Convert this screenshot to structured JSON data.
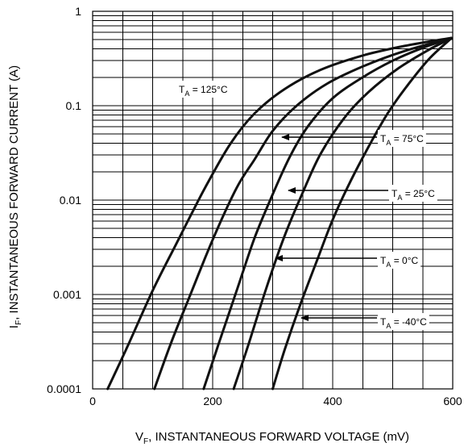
{
  "chart_data": {
    "type": "line",
    "xlabel": "V",
    "xlabel_sub": "F",
    "xlabel_rest": ", INSTANTANEOUS FORWARD VOLTAGE (mV)",
    "ylabel": "I",
    "ylabel_sub": "F",
    "ylabel_rest": ", INSTANTANEOUS FORWARD CURRENT (A)",
    "xlim": [
      0,
      600
    ],
    "ylim": [
      0.0001,
      1
    ],
    "yscale": "log",
    "grid": true,
    "x_ticks": [
      {
        "value": 0,
        "label": "0"
      },
      {
        "value": 200,
        "label": "200"
      },
      {
        "value": 400,
        "label": "400"
      },
      {
        "value": 600,
        "label": "600"
      }
    ],
    "y_ticks": [
      {
        "value": 1,
        "label": "1"
      },
      {
        "value": 0.1,
        "label": "0.1"
      },
      {
        "value": 0.01,
        "label": "0.01"
      },
      {
        "value": 0.001,
        "label": "0.001"
      },
      {
        "value": 0.0001,
        "label": "0.0001"
      }
    ],
    "series": [
      {
        "name": "T_A = 125°C",
        "label_main": "T",
        "label_sub": "A",
        "label_rest": " = 125°C",
        "points": [
          [
            25,
            0.0001
          ],
          [
            60,
            0.0003
          ],
          [
            100,
            0.0011
          ],
          [
            140,
            0.0035
          ],
          [
            165,
            0.0072
          ],
          [
            190,
            0.0145
          ],
          [
            230,
            0.04
          ],
          [
            270,
            0.083
          ],
          [
            320,
            0.15
          ],
          [
            380,
            0.24
          ],
          [
            450,
            0.34
          ],
          [
            520,
            0.43
          ],
          [
            596,
            0.52
          ]
        ]
      },
      {
        "name": "T_A = 75°C",
        "label_main": "T",
        "label_sub": "A",
        "label_rest": " = 75°C",
        "points": [
          [
            103,
            0.0001
          ],
          [
            130,
            0.0003
          ],
          [
            160,
            0.0009
          ],
          [
            200,
            0.0038
          ],
          [
            240,
            0.0135
          ],
          [
            270,
            0.027
          ],
          [
            300,
            0.054
          ],
          [
            340,
            0.1
          ],
          [
            390,
            0.17
          ],
          [
            450,
            0.26
          ],
          [
            520,
            0.38
          ],
          [
            597,
            0.52
          ]
        ]
      },
      {
        "name": "T_A = 25°C",
        "label_main": "T",
        "label_sub": "A",
        "label_rest": " = 25°C",
        "points": [
          [
            185,
            0.0001
          ],
          [
            210,
            0.0003
          ],
          [
            240,
            0.0011
          ],
          [
            270,
            0.004
          ],
          [
            300,
            0.0115
          ],
          [
            330,
            0.03
          ],
          [
            360,
            0.062
          ],
          [
            400,
            0.12
          ],
          [
            450,
            0.2
          ],
          [
            500,
            0.3
          ],
          [
            550,
            0.41
          ],
          [
            598,
            0.52
          ]
        ]
      },
      {
        "name": "T_A = 0°C",
        "label_main": "T",
        "label_sub": "A",
        "label_rest": " = 0°C",
        "points": [
          [
            235,
            0.0001
          ],
          [
            260,
            0.0003
          ],
          [
            290,
            0.0012
          ],
          [
            320,
            0.0042
          ],
          [
            350,
            0.012
          ],
          [
            380,
            0.031
          ],
          [
            420,
            0.075
          ],
          [
            460,
            0.14
          ],
          [
            510,
            0.25
          ],
          [
            560,
            0.39
          ],
          [
            598,
            0.52
          ]
        ]
      },
      {
        "name": "T_A = -40°C",
        "label_main": "T",
        "label_sub": "A",
        "label_rest": " = -40°C",
        "points": [
          [
            300,
            0.0001
          ],
          [
            320,
            0.00026
          ],
          [
            345,
            0.00075
          ],
          [
            375,
            0.0024
          ],
          [
            400,
            0.0062
          ],
          [
            430,
            0.016
          ],
          [
            460,
            0.037
          ],
          [
            490,
            0.08
          ],
          [
            520,
            0.15
          ],
          [
            560,
            0.31
          ],
          [
            598,
            0.52
          ]
        ]
      }
    ]
  }
}
